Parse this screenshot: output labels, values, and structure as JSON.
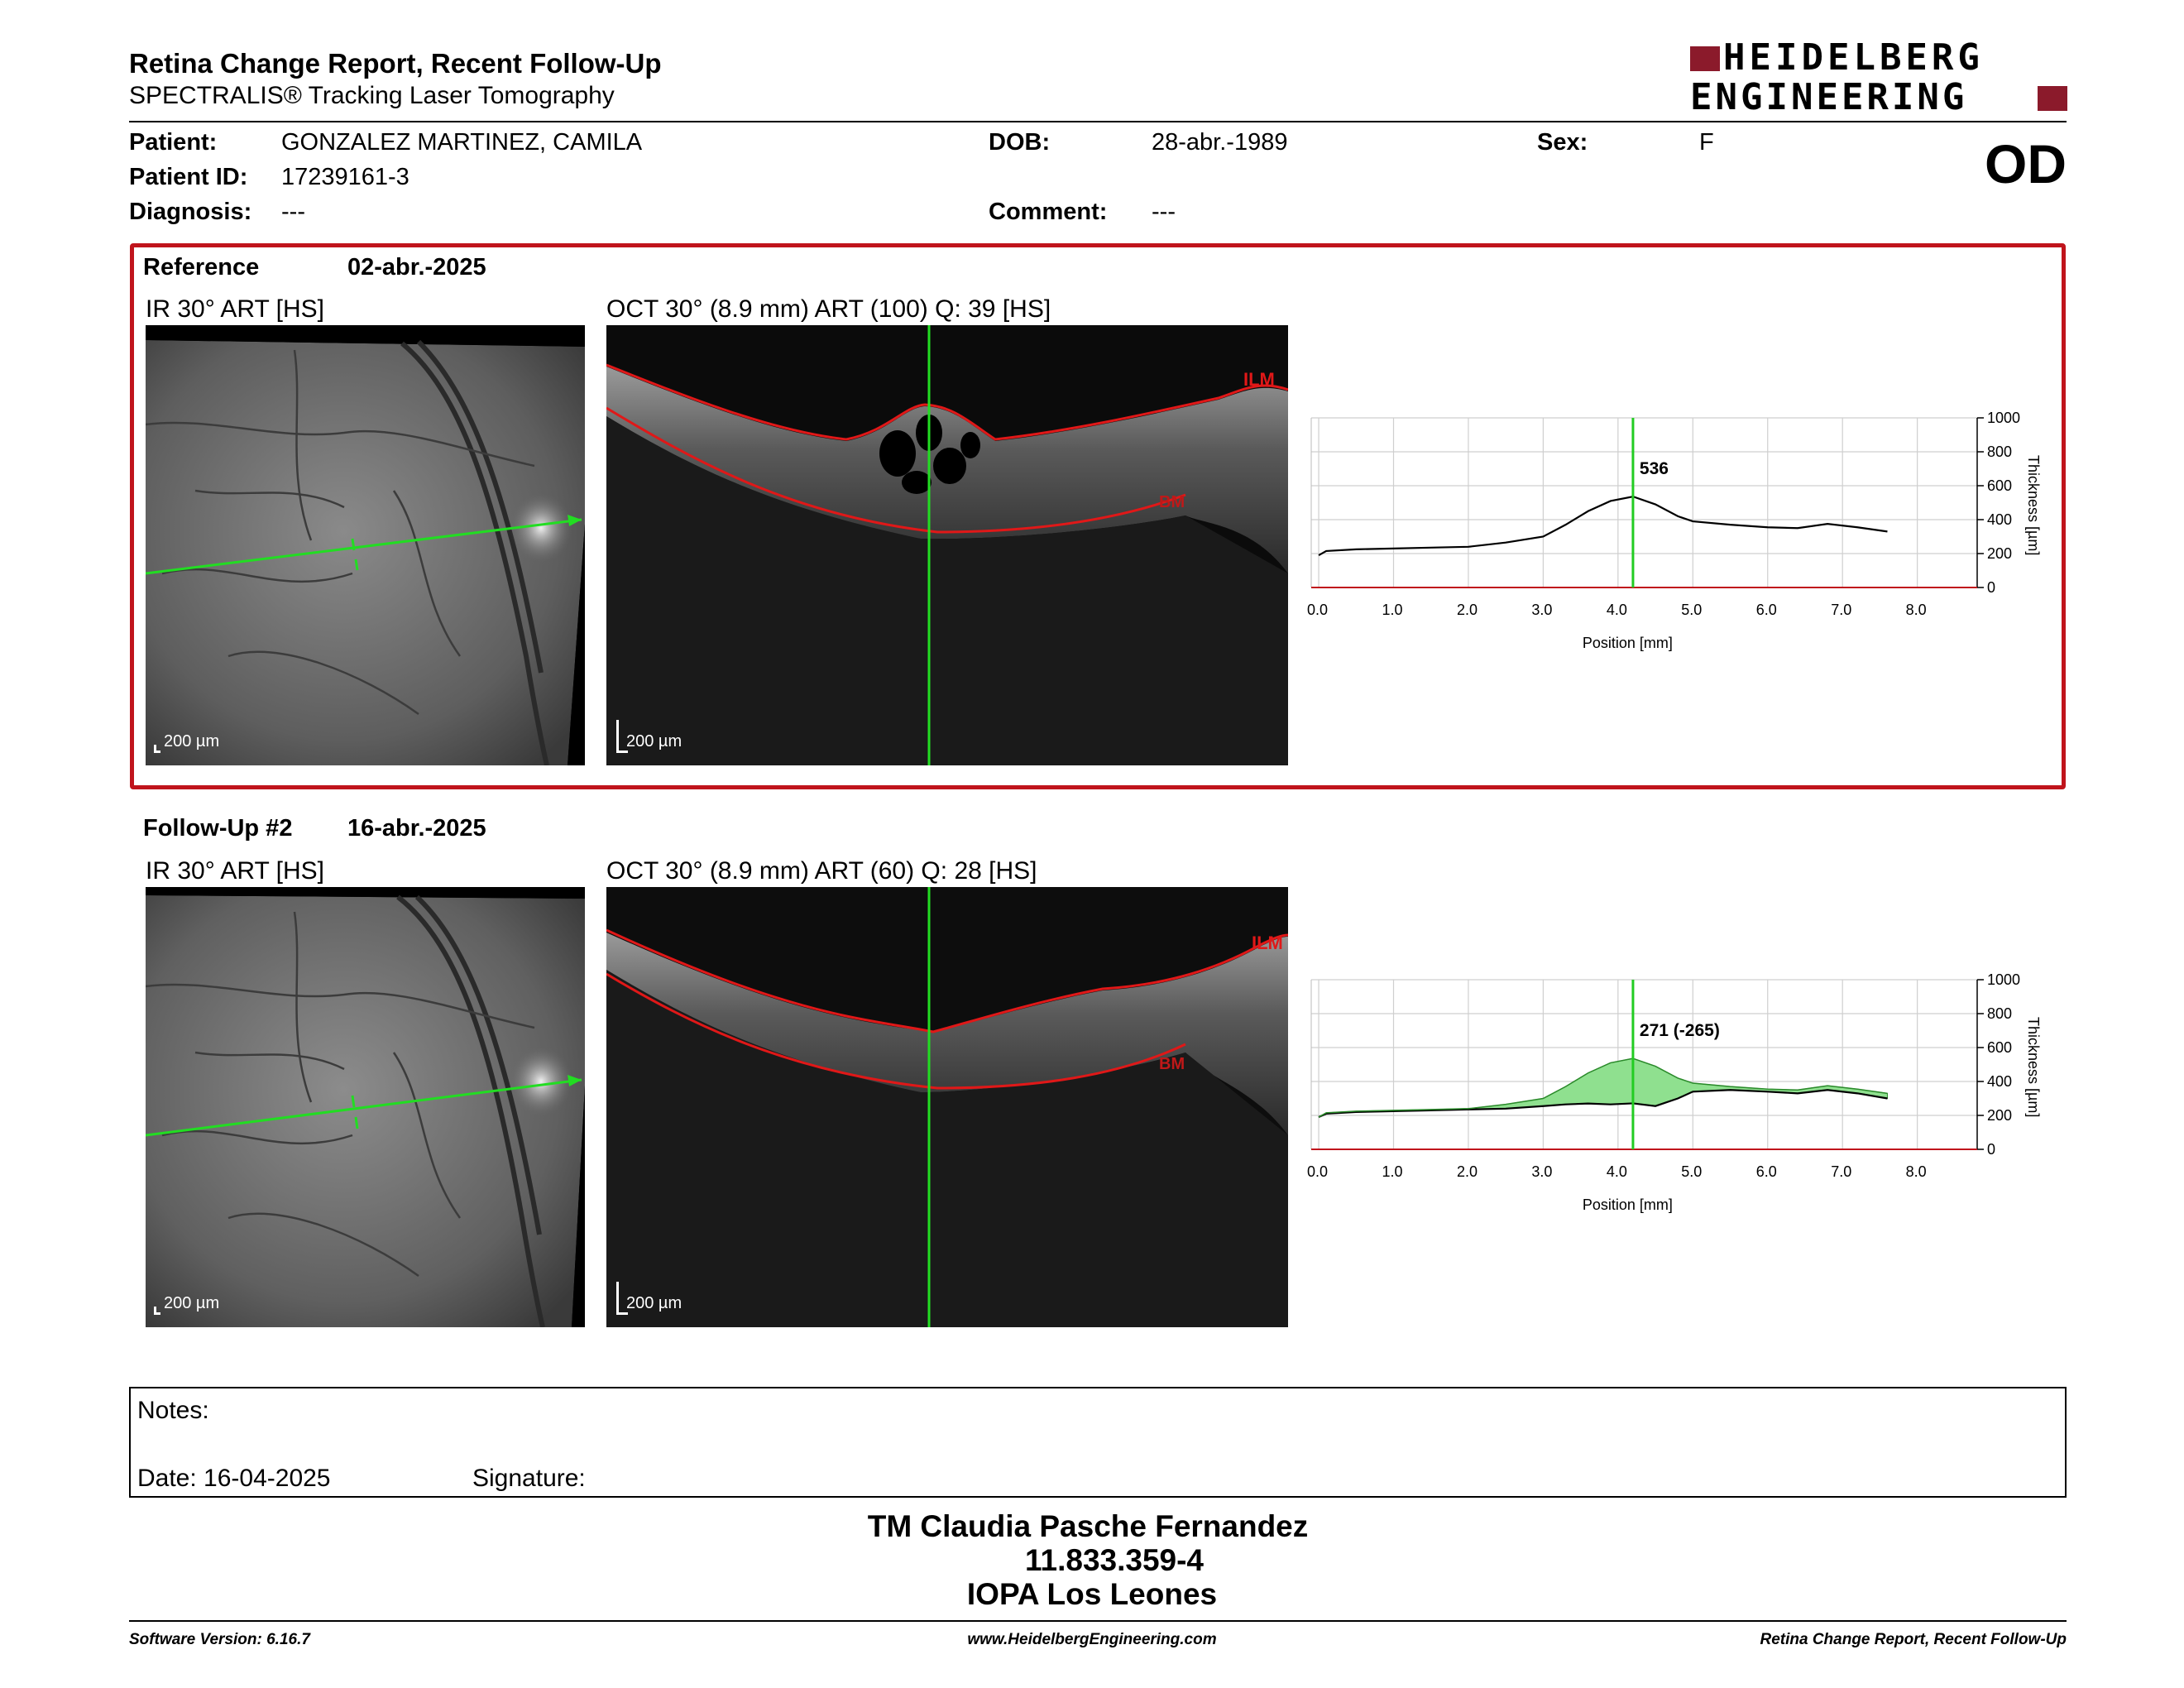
{
  "report": {
    "title": "Retina Change Report, Recent Follow-Up",
    "subtitle": "SPECTRALIS® Tracking Laser Tomography",
    "logo_line1": "HEIDELBERG",
    "logo_line2": "ENGINEERING",
    "eye": "OD"
  },
  "patient": {
    "name_label": "Patient:",
    "name": "GONZALEZ MARTINEZ, CAMILA",
    "id_label": "Patient ID:",
    "id": "17239161-3",
    "diagnosis_label": "Diagnosis:",
    "diagnosis": "---",
    "dob_label": "DOB:",
    "dob": "28-abr.-1989",
    "comment_label": "Comment:",
    "comment": "---",
    "sex_label": "Sex:",
    "sex": "F"
  },
  "reference": {
    "label": "Reference",
    "date": "02-abr.-2025",
    "ir_title": "IR 30° ART [HS]",
    "oct_title": "OCT 30° (8.9 mm) ART (100) Q: 39 [HS]",
    "scale_ir": "200 µm",
    "scale_oct": "200 µm",
    "ilm": "ILM",
    "bm": "BM"
  },
  "followup": {
    "label": "Follow-Up #2",
    "date": "16-abr.-2025",
    "ir_title": "IR 30° ART [HS]",
    "oct_title": "OCT 30° (8.9 mm) ART (60) Q: 28 [HS]",
    "scale_ir": "200 µm",
    "scale_oct": "200 µm",
    "ilm": "ILM",
    "bm": "BM"
  },
  "chart_data": [
    {
      "type": "line",
      "xlabel": "Position [mm]",
      "ylabel": "Thickness [µm]",
      "xlim": [
        0,
        8.9
      ],
      "ylim": [
        0,
        1000
      ],
      "xticks": [
        "0.0",
        "1.0",
        "2.0",
        "3.0",
        "4.0",
        "5.0",
        "6.0",
        "7.0",
        "8.0"
      ],
      "yticks": [
        "0",
        "200",
        "400",
        "600",
        "800",
        "1000"
      ],
      "cursor_x": 4.2,
      "annotation": "536",
      "grid": true,
      "series": [
        {
          "x": [
            0.0,
            0.1,
            0.5,
            1.0,
            1.5,
            2.0,
            2.5,
            3.0,
            3.3,
            3.6,
            3.9,
            4.2,
            4.5,
            4.8,
            5.0,
            5.5,
            6.0,
            6.4,
            6.8,
            7.2,
            7.6
          ],
          "y": [
            190,
            215,
            225,
            230,
            235,
            240,
            265,
            300,
            370,
            450,
            510,
            536,
            490,
            420,
            390,
            370,
            355,
            350,
            375,
            355,
            330
          ]
        }
      ]
    },
    {
      "type": "area",
      "xlabel": "Position [mm]",
      "ylabel": "Thickness [µm]",
      "xlim": [
        0,
        8.9
      ],
      "ylim": [
        0,
        1000
      ],
      "xticks": [
        "0.0",
        "1.0",
        "2.0",
        "3.0",
        "4.0",
        "5.0",
        "6.0",
        "7.0",
        "8.0"
      ],
      "yticks": [
        "0",
        "200",
        "400",
        "600",
        "800",
        "1000"
      ],
      "cursor_x": 4.2,
      "annotation": "271 (-265)",
      "grid": true,
      "series": [
        {
          "x": [
            0.0,
            0.1,
            0.5,
            1.0,
            1.5,
            2.0,
            2.5,
            3.0,
            3.3,
            3.6,
            3.9,
            4.2,
            4.5,
            4.8,
            5.0,
            5.5,
            6.0,
            6.4,
            6.8,
            7.2,
            7.6
          ],
          "y": [
            190,
            215,
            225,
            230,
            235,
            240,
            265,
            300,
            370,
            450,
            510,
            536,
            490,
            420,
            390,
            370,
            355,
            350,
            375,
            355,
            330
          ]
        },
        {
          "x": [
            0.0,
            0.1,
            0.5,
            1.0,
            1.5,
            2.0,
            2.5,
            3.0,
            3.3,
            3.6,
            3.9,
            4.2,
            4.5,
            4.8,
            5.0,
            5.5,
            6.0,
            6.4,
            6.8,
            7.2,
            7.6
          ],
          "y": [
            190,
            210,
            220,
            225,
            230,
            235,
            240,
            255,
            265,
            270,
            265,
            271,
            255,
            300,
            340,
            350,
            340,
            330,
            350,
            330,
            300
          ]
        }
      ]
    }
  ],
  "notes": {
    "notes_label": "Notes:",
    "date_label": "Date: 16-04-2025",
    "signature_label": "Signature:"
  },
  "signatory": {
    "name": "TM Claudia Pasche Fernandez",
    "rut": "11.833.359-4",
    "institution": "IOPA Los Leones"
  },
  "footer": {
    "left": "Software Version: 6.16.7",
    "center": "www.HeidelbergEngineering.com",
    "right": "Retina Change Report, Recent Follow-Up"
  },
  "colors": {
    "accent_red": "#c0141c",
    "logo_red": "#8b1a2b",
    "cursor_green": "#22cc22",
    "area_green": "#8fe08f"
  }
}
